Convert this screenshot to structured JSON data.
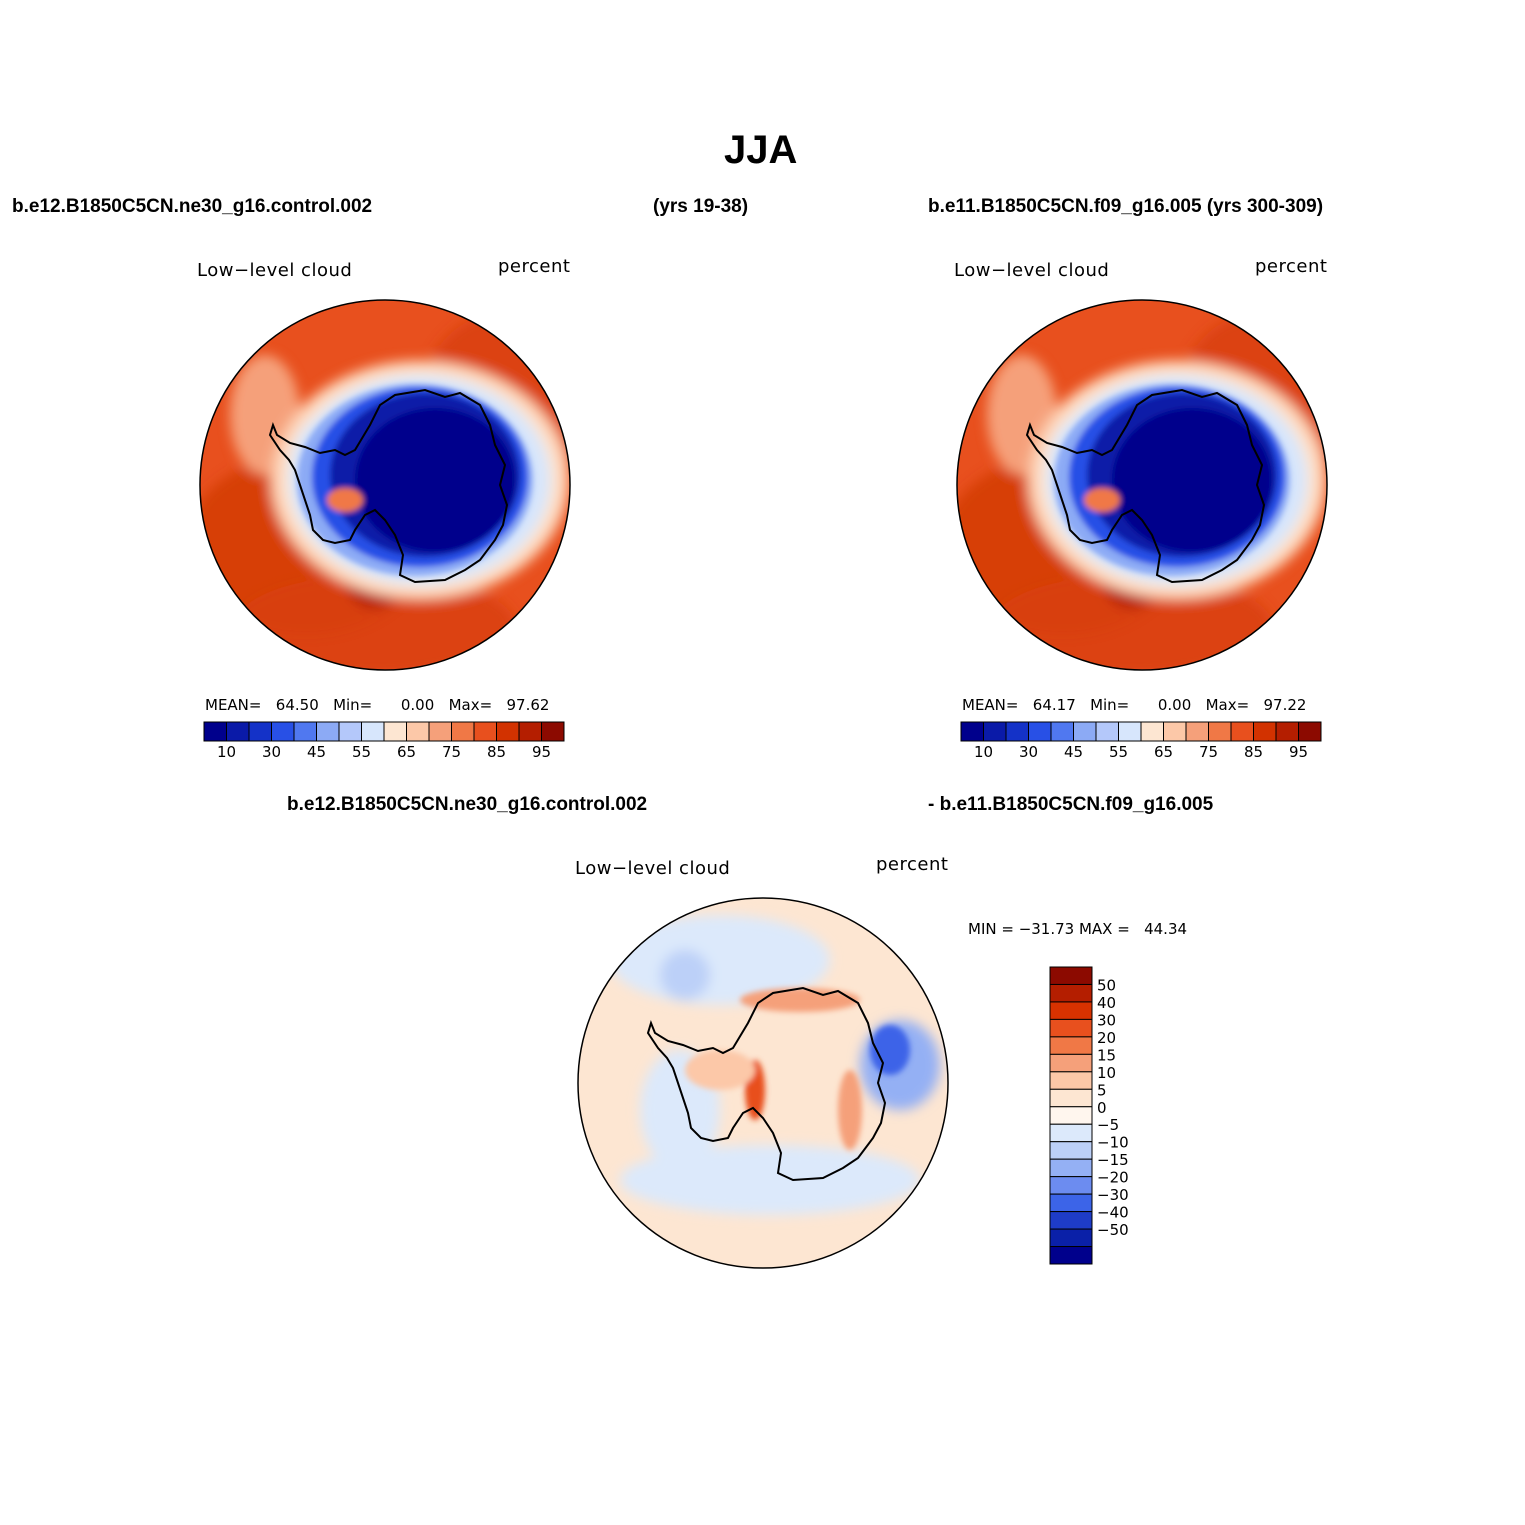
{
  "title": "JJA",
  "case_left": "b.e12.B1850C5CN.ne30_g16.control.002",
  "case_mid": "(yrs 19-38)",
  "case_right": "b.e11.B1850C5CN.f09_g16.005 (yrs 300-309)",
  "diff_left": "b.e12.B1850C5CN.ne30_g16.control.002",
  "diff_right": "- b.e11.B1850C5CN.f09_g16.005",
  "panels": [
    {
      "id": "left",
      "variable": "Low−level cloud",
      "units": "percent",
      "mean_label": "MEAN=",
      "mean": "64.50",
      "min_label": "Min=",
      "min": "0.00",
      "max_label": "Max=",
      "max": "97.62"
    },
    {
      "id": "right",
      "variable": "Low−level cloud",
      "units": "percent",
      "mean_label": "MEAN=",
      "mean": "64.17",
      "min_label": "Min=",
      "min": "0.00",
      "max_label": "Max=",
      "max": "97.22"
    },
    {
      "id": "diff",
      "variable": "Low−level cloud",
      "units": "percent",
      "minmax": "MIN = −31.73 MAX =   44.34"
    }
  ],
  "colorbar_abs": {
    "colors": [
      "#00008c",
      "#0a1aa8",
      "#1432c8",
      "#2850e6",
      "#5078f0",
      "#8caaf5",
      "#b4c8fa",
      "#d7e6fc",
      "#fde6d2",
      "#fcc8a8",
      "#f5a07a",
      "#f07846",
      "#e8501e",
      "#d23200",
      "#b41e00",
      "#8c0a00"
    ],
    "ticks": [
      "10",
      "30",
      "45",
      "55",
      "65",
      "75",
      "85",
      "95"
    ]
  },
  "colorbar_diff": {
    "colors": [
      "#8c0a00",
      "#b41e00",
      "#d83200",
      "#e8501e",
      "#f07846",
      "#f5a07a",
      "#fcc8a8",
      "#fde6d2",
      "#fff6ee",
      "#dce9fb",
      "#bcd0f8",
      "#94b0f4",
      "#6c8cf0",
      "#3c64e8",
      "#1e3cc8",
      "#0a20a8",
      "#00008c"
    ],
    "ticks": [
      "50",
      "40",
      "30",
      "20",
      "15",
      "10",
      "5",
      "0",
      "−5",
      "−10",
      "−15",
      "−20",
      "−30",
      "−40",
      "−50"
    ]
  }
}
